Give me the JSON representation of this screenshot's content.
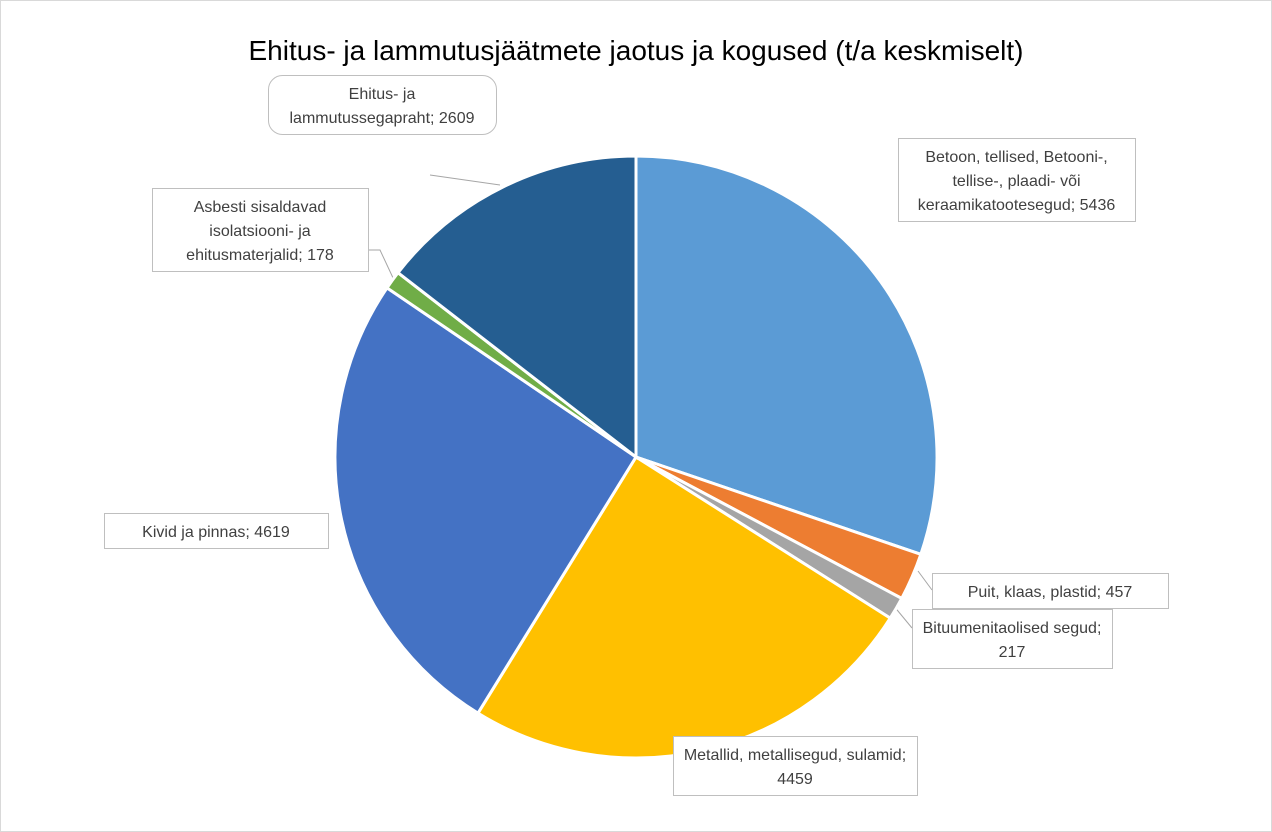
{
  "chart_data": {
    "type": "pie",
    "title": "Ehitus- ja lammutusjäätmete jaotus ja kogused (t/a keskmiselt)",
    "values": [
      5436,
      457,
      217,
      4459,
      4619,
      178,
      2609
    ],
    "value_labels": [
      "Betoon, tellised, Betooni-, tellise-, plaadi- või keraamikatootesegud; 5436",
      "Puit, klaas, plastid; 457",
      "Bituumenitaolised segud; 217",
      "Metallid, metallisegud, sulamid; 4459",
      "Kivid ja pinnas; 4619",
      "Asbesti sisaldavad isolatsiooni- ja ehitusmaterjalid; 178",
      "Ehitus- ja lammutussegapraht; 2609"
    ],
    "colors": [
      "#5b9bd5",
      "#ed7d31",
      "#a5a5a5",
      "#ffc000",
      "#4472c4",
      "#70ad47",
      "#255e91"
    ]
  }
}
